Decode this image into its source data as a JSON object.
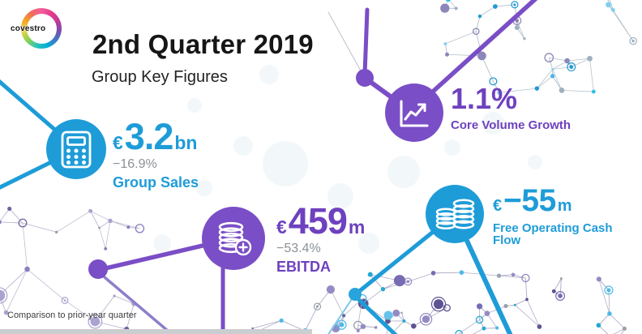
{
  "brand": {
    "logo_text": "covestro",
    "logo_icon": "covestro-ring-logo"
  },
  "header": {
    "title": "2nd Quarter 2019",
    "subtitle": "Group Key Figures"
  },
  "metrics": [
    {
      "id": "group-sales",
      "icon": "calculator-icon",
      "currency": "€",
      "value": "3.2",
      "unit": "bn",
      "change": "−16.9%",
      "label": "Group Sales",
      "color": "#1E9CD8"
    },
    {
      "id": "core-volume-growth",
      "icon": "line-chart-icon",
      "value": "1.1%",
      "label": "Core Volume Growth",
      "color": "#7A4EC6"
    },
    {
      "id": "ebitda",
      "icon": "coins-plus-icon",
      "currency": "€",
      "value": "459",
      "unit": "m",
      "change": "−53.4%",
      "label": "EBITDA",
      "color": "#7A4EC6"
    },
    {
      "id": "free-operating-cash-flow",
      "icon": "coin-stacks-icon",
      "currency": "€",
      "value": "−55",
      "unit": "m",
      "label": "Free Operating Cash Flow",
      "color": "#1E9CD8"
    }
  ],
  "footnote": "Comparison to prior-year quarter",
  "colors": {
    "blue": "#1E9CD8",
    "purple": "#7A4EC6",
    "purple_text": "#6E41BE",
    "muted_gray": "#8C9196"
  }
}
